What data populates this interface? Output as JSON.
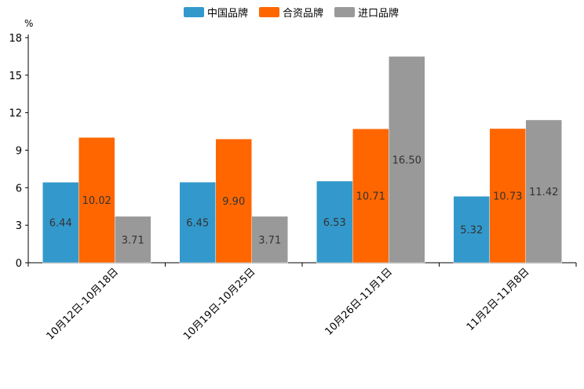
{
  "chart_data": {
    "type": "bar",
    "title": "",
    "unit": "%",
    "xlabel": "",
    "ylabel": "%",
    "ylim": [
      0,
      18
    ],
    "yticks": [
      0,
      3,
      6,
      9,
      12,
      15,
      18
    ],
    "categories": [
      "10月12日-10月18日",
      "10月19日-10月25日",
      "10月26日-11月1日",
      "11月2日-11月8日"
    ],
    "series": [
      {
        "name": "中国品牌",
        "color": "#3399cc",
        "values": [
          6.44,
          6.45,
          6.53,
          5.32
        ]
      },
      {
        "name": "合资品牌",
        "color": "#ff6600",
        "values": [
          10.02,
          9.9,
          10.71,
          10.73
        ]
      },
      {
        "name": "进口品牌",
        "color": "#999999",
        "values": [
          3.71,
          3.71,
          16.5,
          11.42
        ]
      }
    ],
    "legend_position": "top-center",
    "grid": false
  }
}
